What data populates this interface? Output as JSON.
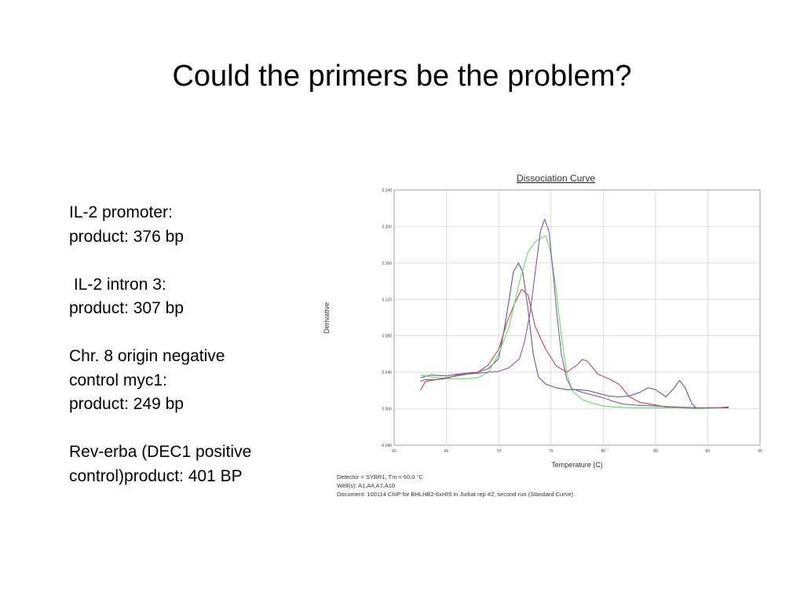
{
  "slide": {
    "title": "Could the primers be the problem?",
    "notes": [
      [
        "IL-2 promoter:",
        "product: 376 bp"
      ],
      [
        " IL-2 intron 3:",
        "product: 307 bp"
      ],
      [
        "Chr. 8 origin negative",
        "control myc1:",
        "product: 249 bp"
      ],
      [
        "Rev-erba (DEC1 positive",
        "control)product: 401 BP"
      ]
    ]
  },
  "chart_data": {
    "type": "line",
    "title": "Dissociation Curve",
    "xlabel": "Temperature (C)",
    "ylabel": "Derivative",
    "xlim": [
      60,
      95
    ],
    "ylim": [
      -0.04,
      0.24
    ],
    "xticks": [
      "60",
      "65",
      "70",
      "75",
      "80",
      "85",
      "90",
      "95"
    ],
    "yticks": [
      "-0.040",
      "0.000",
      "0.040",
      "0.080",
      "0.120",
      "0.160",
      "0.200",
      "0.240"
    ],
    "grid": true,
    "footer": [
      "Detector = SYBR1, Tm = 60.0 °C",
      "Well(s): A1,A4,A7,A10",
      "Document: 100114 ChIP for BHLHB2-6xHIS in Jurkat rep #2, second run (Standard Curve)"
    ],
    "series": [
      {
        "color": "#5a5ab0",
        "points": [
          [
            62.5,
            0.034
          ],
          [
            63.5,
            0.037
          ],
          [
            65,
            0.036
          ],
          [
            66,
            0.038
          ],
          [
            67,
            0.039
          ],
          [
            68,
            0.04
          ],
          [
            69,
            0.044
          ],
          [
            70,
            0.055
          ],
          [
            70.5,
            0.085
          ],
          [
            71,
            0.12
          ],
          [
            71.4,
            0.15
          ],
          [
            71.9,
            0.16
          ],
          [
            72.3,
            0.15
          ],
          [
            72.8,
            0.11
          ],
          [
            73.3,
            0.06
          ],
          [
            73.8,
            0.035
          ],
          [
            74.5,
            0.027
          ],
          [
            75.5,
            0.023
          ],
          [
            76.5,
            0.021
          ],
          [
            77.5,
            0.021
          ],
          [
            78.5,
            0.02
          ],
          [
            79.5,
            0.017
          ],
          [
            80.5,
            0.014
          ],
          [
            81.5,
            0.013
          ],
          [
            82.5,
            0.014
          ],
          [
            83.5,
            0.018
          ],
          [
            84.3,
            0.023
          ],
          [
            85,
            0.021
          ],
          [
            86,
            0.013
          ],
          [
            86.8,
            0.023
          ],
          [
            87.3,
            0.031
          ],
          [
            87.8,
            0.024
          ],
          [
            88.5,
            0.005
          ],
          [
            89,
            0.0
          ],
          [
            90,
            0.001
          ],
          [
            91,
            0.001
          ],
          [
            92,
            0.002
          ]
        ]
      },
      {
        "color": "#c04848",
        "points": [
          [
            62.5,
            0.02
          ],
          [
            63,
            0.03
          ],
          [
            64,
            0.032
          ],
          [
            65,
            0.033
          ],
          [
            66,
            0.037
          ],
          [
            67,
            0.038
          ],
          [
            68,
            0.04
          ],
          [
            69,
            0.048
          ],
          [
            70,
            0.065
          ],
          [
            70.8,
            0.095
          ],
          [
            71.5,
            0.115
          ],
          [
            72.2,
            0.131
          ],
          [
            72.8,
            0.125
          ],
          [
            73.5,
            0.09
          ],
          [
            74.5,
            0.065
          ],
          [
            75.5,
            0.047
          ],
          [
            76.5,
            0.04
          ],
          [
            77.5,
            0.048
          ],
          [
            78,
            0.054
          ],
          [
            78.5,
            0.052
          ],
          [
            79.5,
            0.038
          ],
          [
            80.5,
            0.033
          ],
          [
            81.5,
            0.027
          ],
          [
            82.5,
            0.013
          ],
          [
            83.5,
            0.007
          ],
          [
            85,
            0.004
          ],
          [
            86,
            0.002
          ],
          [
            87,
            0.002
          ],
          [
            88,
            0.001
          ],
          [
            89,
            0.001
          ],
          [
            90,
            0.001
          ],
          [
            92,
            0.001
          ]
        ]
      },
      {
        "color": "#66dd66",
        "points": [
          [
            62.5,
            0.037
          ],
          [
            63.5,
            0.035
          ],
          [
            65,
            0.033
          ],
          [
            66,
            0.033
          ],
          [
            67,
            0.033
          ],
          [
            68,
            0.034
          ],
          [
            69,
            0.04
          ],
          [
            70,
            0.06
          ],
          [
            71,
            0.09
          ],
          [
            72,
            0.14
          ],
          [
            72.8,
            0.172
          ],
          [
            73.5,
            0.183
          ],
          [
            74,
            0.187
          ],
          [
            74.5,
            0.19
          ],
          [
            75,
            0.17
          ],
          [
            75.5,
            0.13
          ],
          [
            76,
            0.08
          ],
          [
            76.5,
            0.04
          ],
          [
            77,
            0.02
          ],
          [
            78,
            0.01
          ],
          [
            79,
            0.006
          ],
          [
            80,
            0.003
          ],
          [
            81,
            0.002
          ],
          [
            83,
            0.001
          ],
          [
            85,
            0.001
          ],
          [
            87,
            0.001
          ],
          [
            89,
            0.0
          ],
          [
            91,
            0.001
          ]
        ]
      },
      {
        "color": "#8a5a9a",
        "points": [
          [
            62.5,
            0.03
          ],
          [
            63,
            0.032
          ],
          [
            64,
            0.032
          ],
          [
            65,
            0.034
          ],
          [
            66,
            0.036
          ],
          [
            67,
            0.038
          ],
          [
            68,
            0.039
          ],
          [
            69,
            0.04
          ],
          [
            70,
            0.041
          ],
          [
            71,
            0.045
          ],
          [
            72,
            0.055
          ],
          [
            72.5,
            0.075
          ],
          [
            73,
            0.105
          ],
          [
            73.5,
            0.15
          ],
          [
            74,
            0.195
          ],
          [
            74.4,
            0.208
          ],
          [
            74.8,
            0.195
          ],
          [
            75.2,
            0.15
          ],
          [
            75.6,
            0.1
          ],
          [
            76,
            0.06
          ],
          [
            76.5,
            0.033
          ],
          [
            77,
            0.022
          ],
          [
            78,
            0.018
          ],
          [
            79,
            0.015
          ],
          [
            80,
            0.012
          ],
          [
            81,
            0.008
          ],
          [
            82,
            0.005
          ],
          [
            83,
            0.004
          ],
          [
            85,
            0.003
          ],
          [
            87,
            0.002
          ],
          [
            89,
            0.001
          ],
          [
            91,
            0.001
          ]
        ]
      }
    ]
  }
}
